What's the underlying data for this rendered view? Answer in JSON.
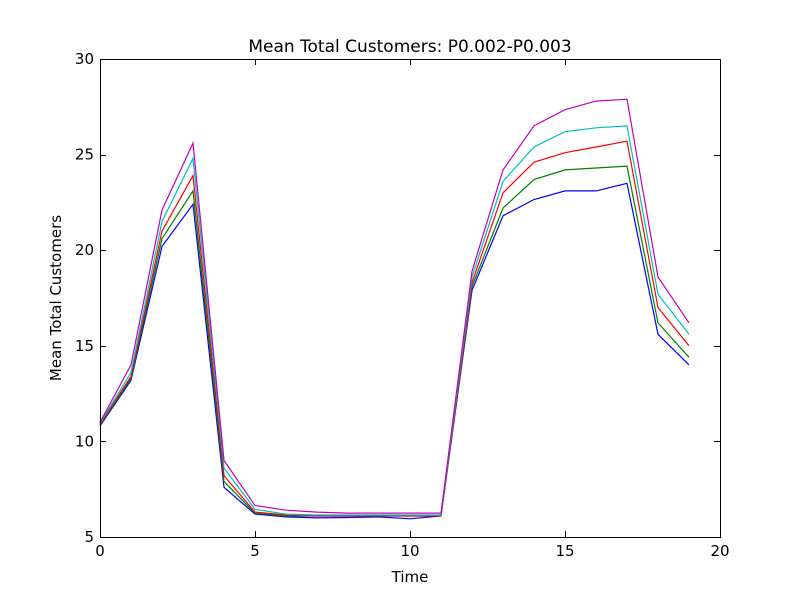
{
  "chart_data": {
    "type": "line",
    "title": "Mean Total Customers: P0.002-P0.003",
    "xlabel": "Time",
    "ylabel": "Mean Total Customers",
    "xlim": [
      0,
      20
    ],
    "ylim": [
      5,
      30
    ],
    "xticks": [
      0,
      5,
      10,
      15,
      20
    ],
    "yticks": [
      5,
      10,
      15,
      20,
      25,
      30
    ],
    "grid": false,
    "x": [
      0,
      1,
      2,
      3,
      4,
      5,
      6,
      7,
      8,
      9,
      10,
      11,
      12,
      13,
      14,
      15,
      16,
      17,
      18,
      19
    ],
    "series": [
      {
        "color": "#0000ff",
        "values": [
          10.8,
          13.2,
          20.2,
          22.4,
          7.6,
          6.2,
          6.05,
          6.0,
          6.02,
          6.05,
          5.95,
          6.1,
          17.9,
          21.8,
          22.65,
          23.1,
          23.1,
          23.5,
          15.6,
          14.0
        ]
      },
      {
        "color": "#008000",
        "values": [
          10.85,
          13.3,
          20.6,
          23.1,
          7.9,
          6.25,
          6.1,
          6.1,
          6.1,
          6.1,
          6.1,
          6.1,
          18.1,
          22.2,
          23.7,
          24.2,
          24.3,
          24.4,
          16.2,
          14.4
        ]
      },
      {
        "color": "#ff0000",
        "values": [
          10.9,
          13.4,
          21.0,
          23.9,
          8.2,
          6.3,
          6.15,
          6.1,
          6.1,
          6.12,
          6.1,
          6.1,
          18.3,
          23.0,
          24.6,
          25.1,
          25.4,
          25.7,
          17.0,
          15.0
        ]
      },
      {
        "color": "#00bfbf",
        "values": [
          10.95,
          13.6,
          21.5,
          24.8,
          8.6,
          6.45,
          6.2,
          6.15,
          6.15,
          6.15,
          6.15,
          6.15,
          18.6,
          23.6,
          25.4,
          26.2,
          26.4,
          26.5,
          17.7,
          15.6
        ]
      },
      {
        "color": "#bf00bf",
        "values": [
          11.0,
          14.0,
          22.1,
          25.6,
          9.0,
          6.65,
          6.4,
          6.3,
          6.25,
          6.25,
          6.25,
          6.25,
          18.9,
          24.2,
          26.5,
          27.35,
          27.8,
          27.9,
          18.6,
          16.2
        ]
      }
    ]
  }
}
